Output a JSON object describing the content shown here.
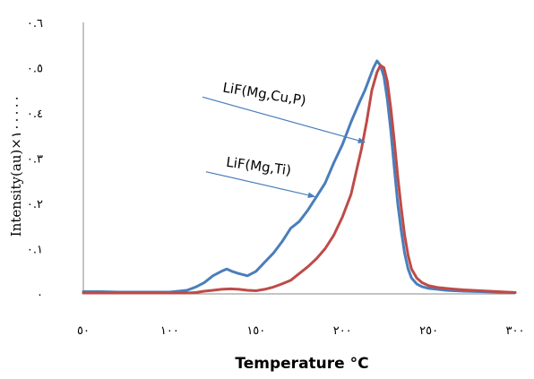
{
  "chart_data": {
    "type": "line",
    "xlabel": "Temperature °C",
    "ylabel": "Intensity(au)×١٠٠٠٠٠",
    "xlim": [
      50,
      300
    ],
    "ylim": [
      0,
      0.6
    ],
    "x_ticks": [
      {
        "value": 50,
        "label": "٥٠"
      },
      {
        "value": 100,
        "label": "١٠٠"
      },
      {
        "value": 150,
        "label": "١٥٠"
      },
      {
        "value": 200,
        "label": "٢٠٠"
      },
      {
        "value": 250,
        "label": "٢٥٠"
      },
      {
        "value": 300,
        "label": "٣٠٠"
      }
    ],
    "y_ticks": [
      {
        "value": 0,
        "label": "٠"
      },
      {
        "value": 0.1,
        "label": "٠.١"
      },
      {
        "value": 0.2,
        "label": "٠.٢"
      },
      {
        "value": 0.3,
        "label": "٠.٣"
      },
      {
        "value": 0.4,
        "label": "٠.٤"
      },
      {
        "value": 0.5,
        "label": "٠.٥"
      },
      {
        "value": 0.6,
        "label": "٠.٦"
      }
    ],
    "grid": false,
    "legend": "none",
    "series": [
      {
        "name": "LiF(Mg,Cu,P)",
        "color": "#4a7ebb",
        "x": [
          50,
          60,
          70,
          80,
          90,
          100,
          110,
          115,
          120,
          125,
          130,
          133,
          136,
          140,
          145,
          150,
          155,
          160,
          165,
          170,
          175,
          180,
          185,
          190,
          195,
          200,
          205,
          210,
          213,
          216,
          218,
          220,
          222,
          224,
          226,
          228,
          230,
          232,
          234,
          236,
          238,
          240,
          243,
          246,
          250,
          255,
          260,
          270,
          280,
          290,
          300
        ],
        "y": [
          0.005,
          0.005,
          0.004,
          0.004,
          0.004,
          0.004,
          0.008,
          0.015,
          0.025,
          0.04,
          0.05,
          0.055,
          0.05,
          0.045,
          0.04,
          0.05,
          0.07,
          0.09,
          0.115,
          0.145,
          0.16,
          0.185,
          0.215,
          0.245,
          0.29,
          0.33,
          0.38,
          0.425,
          0.45,
          0.48,
          0.5,
          0.515,
          0.505,
          0.48,
          0.43,
          0.36,
          0.28,
          0.2,
          0.14,
          0.09,
          0.055,
          0.035,
          0.022,
          0.016,
          0.012,
          0.01,
          0.008,
          0.006,
          0.005,
          0.004,
          0.003
        ]
      },
      {
        "name": "LiF(Mg,Ti)",
        "color": "#be4b48",
        "x": [
          50,
          60,
          70,
          80,
          90,
          100,
          110,
          115,
          120,
          125,
          130,
          135,
          140,
          145,
          150,
          155,
          160,
          165,
          170,
          175,
          180,
          185,
          190,
          195,
          200,
          205,
          208,
          211,
          214,
          217,
          220,
          222,
          224,
          226,
          228,
          230,
          232,
          234,
          236,
          238,
          240,
          243,
          246,
          250,
          255,
          260,
          270,
          280,
          290,
          300
        ],
        "y": [
          0.002,
          0.002,
          0.002,
          0.002,
          0.002,
          0.002,
          0.002,
          0.003,
          0.006,
          0.008,
          0.01,
          0.011,
          0.01,
          0.008,
          0.007,
          0.01,
          0.015,
          0.022,
          0.03,
          0.045,
          0.06,
          0.078,
          0.1,
          0.13,
          0.17,
          0.22,
          0.27,
          0.32,
          0.38,
          0.45,
          0.49,
          0.505,
          0.5,
          0.47,
          0.41,
          0.34,
          0.26,
          0.19,
          0.13,
          0.085,
          0.055,
          0.035,
          0.025,
          0.018,
          0.014,
          0.012,
          0.009,
          0.007,
          0.005,
          0.003
        ]
      }
    ],
    "annotations": [
      {
        "text": "LiF(Mg,Cu,P)",
        "arrow_from": [
          119,
          0.435
        ],
        "arrow_to": [
          213,
          0.335
        ],
        "color": "#4a7ebb"
      },
      {
        "text": "LiF(Mg,Ti)",
        "arrow_from": [
          121,
          0.27
        ],
        "arrow_to": [
          184,
          0.215
        ],
        "color": "#4a7ebb"
      }
    ]
  }
}
